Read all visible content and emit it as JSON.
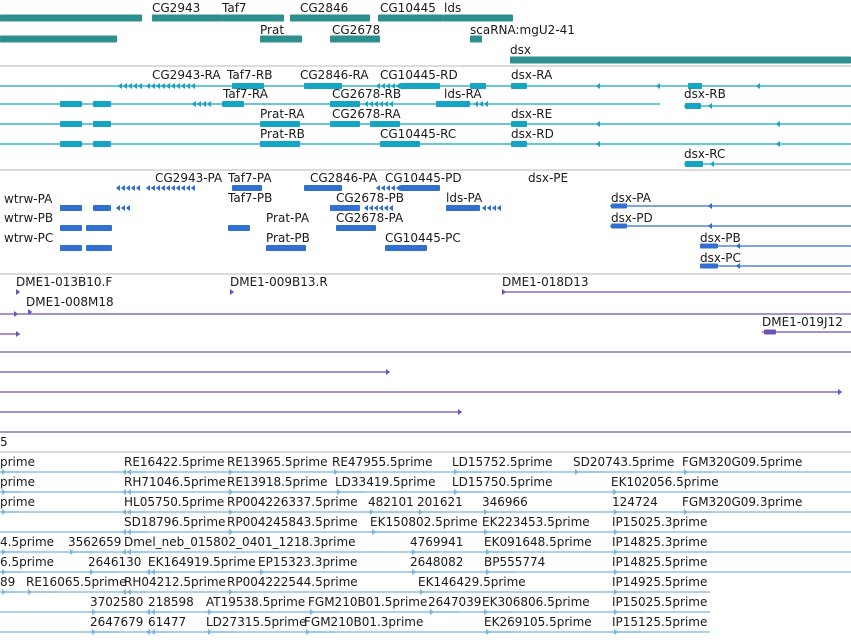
{
  "colors": {
    "gene": "#2e8f8f",
    "rna": "#14a5c4",
    "protein": "#2f70d0",
    "clone": "#6f55b3",
    "est": "#7ab6e3",
    "divider": "#b8b8b8",
    "text": "#1a1a1a"
  },
  "tracks": {
    "gene": {
      "labels": [
        "CG2943",
        "Taf7",
        "CG2846",
        "CG10445",
        "lds",
        "Prat",
        "CG2678",
        "scaRNA:mgU2-41",
        "dsx"
      ]
    },
    "mrna": {
      "labels": [
        "CG2943-RA",
        "Taf7-RB",
        "CG2846-RA",
        "CG10445-RD",
        "dsx-RA",
        "dsx-RB",
        "Taf7-RA",
        "CG2678-RB",
        "lds-RA",
        "Prat-RA",
        "CG2678-RA",
        "dsx-RE",
        "Prat-RB",
        "CG10445-RC",
        "dsx-RD",
        "dsx-RC"
      ]
    },
    "protein": {
      "labels": [
        "CG2943-PA",
        "Taf7-PA",
        "CG2846-PA",
        "CG10445-PD",
        "dsx-PE",
        "wtrw-PA",
        "Taf7-PB",
        "CG2678-PB",
        "lds-PA",
        "dsx-PA",
        "wtrw-PB",
        "Prat-PA",
        "CG2678-PA",
        "dsx-PD",
        "wtrw-PC",
        "Prat-PB",
        "CG10445-PC",
        "dsx-PB",
        "dsx-PC"
      ]
    },
    "clone": {
      "labels": [
        "DME1-013B10.F",
        "DME1-009B13.R",
        "DME1-018D13",
        "DME1-008M18",
        "DME1-019J12"
      ],
      "clipped_label": "5"
    },
    "est": {
      "labels": [
        "prime",
        "RE16422.5prime",
        "RE13965.5prime",
        "RE47955.5prime",
        "LD15752.5prime",
        "SD20743.5prime",
        "FGM320G09.5prime",
        "prime",
        "RH71046.5prime",
        "RE13918.5prime",
        "LD33419.5prime",
        "LD15750.5prime",
        "EK102056.5prime",
        "prime",
        "HL05750.5prime",
        "RP004226337.5prime",
        "482101",
        "201621",
        "346966",
        "124724",
        "FGM320G09.3prime",
        "SD18796.5prime",
        "RP004245843.5prime",
        "EK150802.5prime",
        "EK223453.5prime",
        "IP15025.3prime",
        "4.5prime",
        "3562659",
        "Dmel_neb_015802_0401_1218.3prime",
        "4769941",
        "EK091648.5prime",
        "IP14825.3prime",
        "6.5prime",
        "2646130",
        "EK164919.5prime",
        "EP15323.3prime",
        "2648082",
        "BP555774",
        "IP14825.5prime",
        "89",
        "RE16065.5prime",
        "RH04212.5prime",
        "RP004222544.5prime",
        "EK146429.5prime",
        "IP14925.5prime",
        "3702580",
        "218598",
        "AT19538.5prime",
        "FGM210B01.5prime",
        "2647039",
        "EK306806.5prime",
        "IP15025.5prime",
        "2647679",
        "61477",
        "LD27315.5prime",
        "FGM210B01.3prime",
        "EK269105.5prime",
        "IP15125.5prime"
      ]
    }
  }
}
